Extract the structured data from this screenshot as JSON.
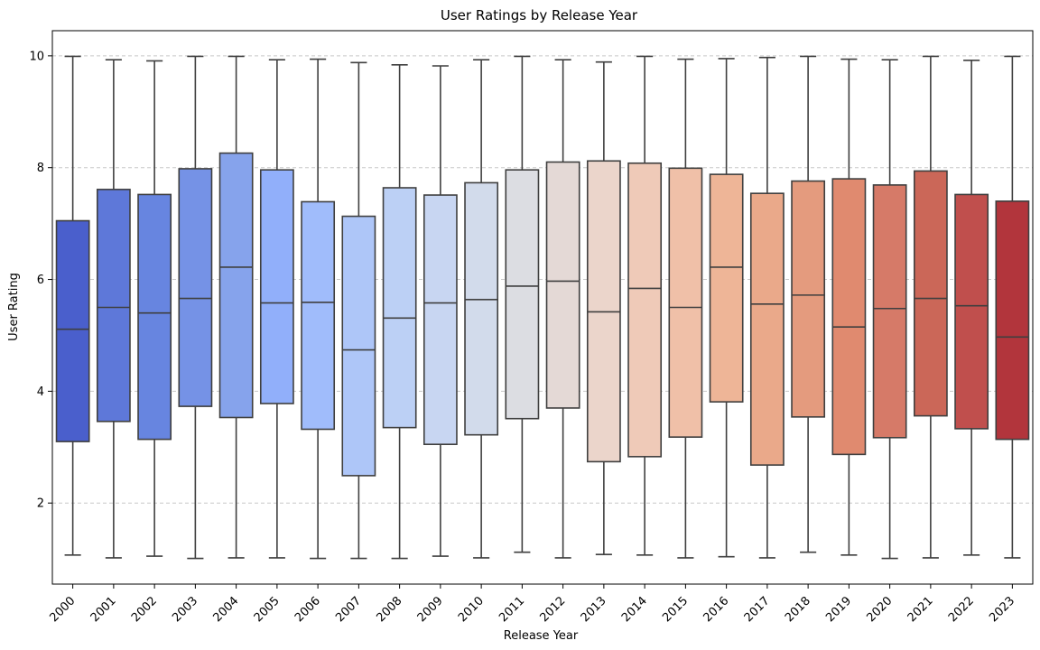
{
  "chart_data": {
    "type": "boxplot",
    "title": "User Ratings by Release Year",
    "xlabel": "Release Year",
    "ylabel": "User Rating",
    "ylim": [
      0.55,
      10.45
    ],
    "yticks": [
      2,
      4,
      6,
      8,
      10
    ],
    "grid": "y-dashed",
    "categories": [
      "2000",
      "2001",
      "2002",
      "2003",
      "2004",
      "2005",
      "2006",
      "2007",
      "2008",
      "2009",
      "2010",
      "2011",
      "2012",
      "2013",
      "2014",
      "2015",
      "2016",
      "2017",
      "2018",
      "2019",
      "2020",
      "2021",
      "2022",
      "2023"
    ],
    "boxes": [
      {
        "year": "2000",
        "min": 1.07,
        "q1": 3.1,
        "median": 5.11,
        "q3": 7.05,
        "max": 9.99,
        "color": "#4a5fcc"
      },
      {
        "year": "2001",
        "min": 1.02,
        "q1": 3.46,
        "median": 5.5,
        "q3": 7.61,
        "max": 9.93,
        "color": "#5e78d9"
      },
      {
        "year": "2002",
        "min": 1.05,
        "q1": 3.14,
        "median": 5.4,
        "q3": 7.52,
        "max": 9.91,
        "color": "#6785e0"
      },
      {
        "year": "2003",
        "min": 1.01,
        "q1": 3.73,
        "median": 5.66,
        "q3": 7.98,
        "max": 9.99,
        "color": "#7592e6"
      },
      {
        "year": "2004",
        "min": 1.02,
        "q1": 3.53,
        "median": 6.22,
        "q3": 8.26,
        "max": 9.99,
        "color": "#86a3ec"
      },
      {
        "year": "2005",
        "min": 1.02,
        "q1": 3.78,
        "median": 5.58,
        "q3": 7.96,
        "max": 9.93,
        "color": "#91affa"
      },
      {
        "year": "2006",
        "min": 1.01,
        "q1": 3.32,
        "median": 5.59,
        "q3": 7.39,
        "max": 9.94,
        "color": "#a0bcfb"
      },
      {
        "year": "2007",
        "min": 1.01,
        "q1": 2.49,
        "median": 4.74,
        "q3": 7.13,
        "max": 9.88,
        "color": "#aec6f8"
      },
      {
        "year": "2008",
        "min": 1.01,
        "q1": 3.35,
        "median": 5.31,
        "q3": 7.64,
        "max": 9.84,
        "color": "#bcd0f5"
      },
      {
        "year": "2009",
        "min": 1.05,
        "q1": 3.05,
        "median": 5.58,
        "q3": 7.51,
        "max": 9.82,
        "color": "#c8d6f2"
      },
      {
        "year": "2010",
        "min": 1.02,
        "q1": 3.22,
        "median": 5.64,
        "q3": 7.73,
        "max": 9.93,
        "color": "#d2dbeb"
      },
      {
        "year": "2011",
        "min": 1.12,
        "q1": 3.51,
        "median": 5.88,
        "q3": 7.96,
        "max": 9.99,
        "color": "#dcdde2"
      },
      {
        "year": "2012",
        "min": 1.02,
        "q1": 3.7,
        "median": 5.97,
        "q3": 8.1,
        "max": 9.93,
        "color": "#e4d9d6"
      },
      {
        "year": "2013",
        "min": 1.08,
        "q1": 2.74,
        "median": 5.42,
        "q3": 8.12,
        "max": 9.89,
        "color": "#ebd5cb"
      },
      {
        "year": "2014",
        "min": 1.07,
        "q1": 2.83,
        "median": 5.84,
        "q3": 8.08,
        "max": 9.99,
        "color": "#efcab8"
      },
      {
        "year": "2015",
        "min": 1.02,
        "q1": 3.18,
        "median": 5.5,
        "q3": 7.99,
        "max": 9.94,
        "color": "#f0c0a8"
      },
      {
        "year": "2016",
        "min": 1.04,
        "q1": 3.81,
        "median": 6.22,
        "q3": 7.88,
        "max": 9.95,
        "color": "#eeb597"
      },
      {
        "year": "2017",
        "min": 1.02,
        "q1": 2.68,
        "median": 5.56,
        "q3": 7.54,
        "max": 9.97,
        "color": "#eaa98a"
      },
      {
        "year": "2018",
        "min": 1.12,
        "q1": 3.54,
        "median": 5.72,
        "q3": 7.76,
        "max": 9.99,
        "color": "#e49b7e"
      },
      {
        "year": "2019",
        "min": 1.07,
        "q1": 2.87,
        "median": 5.15,
        "q3": 7.8,
        "max": 9.94,
        "color": "#e08a6f"
      },
      {
        "year": "2020",
        "min": 1.01,
        "q1": 3.17,
        "median": 5.48,
        "q3": 7.69,
        "max": 9.93,
        "color": "#d67a68"
      },
      {
        "year": "2021",
        "min": 1.02,
        "q1": 3.56,
        "median": 5.66,
        "q3": 7.94,
        "max": 9.99,
        "color": "#cb6758"
      },
      {
        "year": "2022",
        "min": 1.07,
        "q1": 3.33,
        "median": 5.53,
        "q3": 7.52,
        "max": 9.92,
        "color": "#c04f4d"
      },
      {
        "year": "2023",
        "min": 1.02,
        "q1": 3.14,
        "median": 4.97,
        "q3": 7.4,
        "max": 9.99,
        "color": "#b2353c"
      }
    ]
  }
}
